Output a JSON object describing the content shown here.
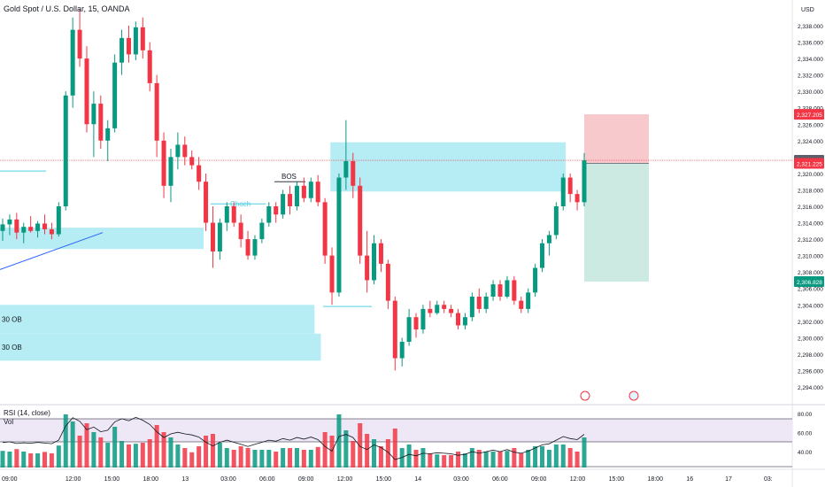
{
  "header": {
    "title": "Gold Spot / U.S. Dollar, 15, OANDA",
    "currency": "USD"
  },
  "price_axis": {
    "ticks": [
      "2,338.000",
      "2,336.000",
      "2,334.000",
      "2,332.000",
      "2,330.000",
      "2,328.000",
      "2,326.000",
      "2,324.000",
      "2,322.000",
      "2,320.000",
      "2,318.000",
      "2,316.000",
      "2,314.000",
      "2,312.000",
      "2,310.000",
      "2,308.000",
      "2,306.000",
      "2,304.000",
      "2,302.000",
      "2,300.000",
      "2,298.000",
      "2,296.000",
      "2,294.000"
    ],
    "tick_values": [
      2338,
      2336,
      2334,
      2332,
      2330,
      2328,
      2326,
      2324,
      2322,
      2320,
      2318,
      2316,
      2314,
      2312,
      2310,
      2308,
      2306,
      2304,
      2302,
      2300,
      2298,
      2296,
      2294
    ],
    "badges": [
      {
        "label": "2,327.205",
        "value": 2327.205,
        "color": "#f23645"
      },
      {
        "label": "2,321.604",
        "value": 2321.604,
        "color": "#5d606b"
      },
      {
        "label": "2,321.225",
        "value": 2321.225,
        "color": "#f23645"
      },
      {
        "label": "2,306.828",
        "value": 2306.828,
        "color": "#089981"
      }
    ]
  },
  "time_axis": [
    "09:00",
    "12:00",
    "15:00",
    "18:00",
    "13",
    "03:00",
    "06:00",
    "09:00",
    "12:00",
    "15:00",
    "14",
    "03:00",
    "06:00",
    "09:00",
    "12:00",
    "15:00",
    "18:00",
    "16",
    "17",
    "03:"
  ],
  "annotations": {
    "choch": "Choch",
    "bos": "BOS",
    "ob_1": "30 OB",
    "ob_2": "30 OB"
  },
  "rsi": {
    "label": "RSI (14, close)",
    "vol_label": "Vol",
    "ticks": [
      "80.00",
      "60.00",
      "40.00"
    ],
    "tick_values": [
      80,
      60,
      40
    ]
  },
  "colors": {
    "up": "#089981",
    "down": "#f23645",
    "zone": "#b2ebf2",
    "zone_line": "#4dd0e1",
    "stop": "#f7c9cd",
    "target": "#cce9e2",
    "rsi_band": "#ede7f6"
  },
  "chart_data": {
    "type": "candlestick",
    "title": "Gold Spot / U.S. Dollar, 15, OANDA",
    "ylabel": "USD",
    "ylim": [
      2293,
      2340
    ],
    "x": [
      "09:00",
      "12:00",
      "15:00",
      "18:00",
      "13",
      "03:00",
      "06:00",
      "09:00",
      "12:00",
      "15:00",
      "14",
      "03:00",
      "06:00",
      "09:00",
      "12:00",
      "15:00",
      "18:00",
      "16",
      "17"
    ],
    "series": [
      {
        "values": [
          {
            "o": 2313.0,
            "h": 2314.5,
            "l": 2311.8,
            "c": 2313.8
          },
          {
            "o": 2313.8,
            "h": 2315.0,
            "l": 2312.5,
            "c": 2314.4
          },
          {
            "o": 2314.4,
            "h": 2315.2,
            "l": 2312.0,
            "c": 2312.8
          },
          {
            "o": 2312.8,
            "h": 2314.0,
            "l": 2311.5,
            "c": 2313.5
          },
          {
            "o": 2313.5,
            "h": 2314.8,
            "l": 2312.8,
            "c": 2313.0
          },
          {
            "o": 2313.0,
            "h": 2314.2,
            "l": 2312.2,
            "c": 2313.9
          },
          {
            "o": 2313.9,
            "h": 2315.0,
            "l": 2312.6,
            "c": 2313.2
          },
          {
            "o": 2313.2,
            "h": 2314.0,
            "l": 2312.0,
            "c": 2312.6
          },
          {
            "o": 2312.6,
            "h": 2316.5,
            "l": 2312.3,
            "c": 2316.0
          },
          {
            "o": 2316.0,
            "h": 2330.0,
            "l": 2315.5,
            "c": 2329.5
          },
          {
            "o": 2329.5,
            "h": 2339.0,
            "l": 2328.0,
            "c": 2337.5
          },
          {
            "o": 2337.5,
            "h": 2340.0,
            "l": 2333.0,
            "c": 2334.0
          },
          {
            "o": 2334.0,
            "h": 2335.5,
            "l": 2325.0,
            "c": 2326.0
          },
          {
            "o": 2326.0,
            "h": 2330.0,
            "l": 2322.0,
            "c": 2328.5
          },
          {
            "o": 2328.5,
            "h": 2329.5,
            "l": 2323.0,
            "c": 2324.0
          },
          {
            "o": 2324.0,
            "h": 2326.5,
            "l": 2321.5,
            "c": 2325.5
          },
          {
            "o": 2325.5,
            "h": 2334.5,
            "l": 2325.0,
            "c": 2333.5
          },
          {
            "o": 2333.5,
            "h": 2337.5,
            "l": 2332.0,
            "c": 2336.5
          },
          {
            "o": 2336.5,
            "h": 2338.0,
            "l": 2333.5,
            "c": 2334.5
          },
          {
            "o": 2334.5,
            "h": 2338.5,
            "l": 2333.8,
            "c": 2337.8
          },
          {
            "o": 2337.8,
            "h": 2339.0,
            "l": 2334.0,
            "c": 2335.0
          },
          {
            "o": 2335.0,
            "h": 2336.0,
            "l": 2330.0,
            "c": 2331.0
          },
          {
            "o": 2331.0,
            "h": 2332.0,
            "l": 2322.0,
            "c": 2324.0
          },
          {
            "o": 2324.0,
            "h": 2325.0,
            "l": 2317.0,
            "c": 2318.5
          },
          {
            "o": 2318.5,
            "h": 2323.0,
            "l": 2316.5,
            "c": 2322.0
          },
          {
            "o": 2322.0,
            "h": 2325.0,
            "l": 2320.5,
            "c": 2323.5
          },
          {
            "o": 2323.5,
            "h": 2324.5,
            "l": 2321.0,
            "c": 2322.0
          },
          {
            "o": 2322.0,
            "h": 2322.8,
            "l": 2320.5,
            "c": 2321.0
          },
          {
            "o": 2321.0,
            "h": 2322.0,
            "l": 2318.0,
            "c": 2319.0
          },
          {
            "o": 2319.0,
            "h": 2320.0,
            "l": 2313.0,
            "c": 2314.0
          },
          {
            "o": 2314.0,
            "h": 2316.0,
            "l": 2308.5,
            "c": 2310.5
          },
          {
            "o": 2310.5,
            "h": 2314.5,
            "l": 2309.5,
            "c": 2314.0
          },
          {
            "o": 2314.0,
            "h": 2316.5,
            "l": 2313.0,
            "c": 2316.0
          },
          {
            "o": 2316.0,
            "h": 2316.5,
            "l": 2313.5,
            "c": 2314.0
          },
          {
            "o": 2314.0,
            "h": 2315.0,
            "l": 2311.0,
            "c": 2312.0
          },
          {
            "o": 2312.0,
            "h": 2313.0,
            "l": 2309.5,
            "c": 2310.0
          },
          {
            "o": 2310.0,
            "h": 2312.5,
            "l": 2309.5,
            "c": 2312.0
          },
          {
            "o": 2312.0,
            "h": 2314.5,
            "l": 2311.5,
            "c": 2314.0
          },
          {
            "o": 2314.0,
            "h": 2316.5,
            "l": 2313.5,
            "c": 2316.0
          },
          {
            "o": 2316.0,
            "h": 2316.5,
            "l": 2314.0,
            "c": 2315.0
          },
          {
            "o": 2315.0,
            "h": 2318.0,
            "l": 2314.5,
            "c": 2317.5
          },
          {
            "o": 2317.5,
            "h": 2318.5,
            "l": 2315.0,
            "c": 2316.0
          },
          {
            "o": 2316.0,
            "h": 2319.0,
            "l": 2315.5,
            "c": 2318.5
          },
          {
            "o": 2318.5,
            "h": 2319.5,
            "l": 2316.5,
            "c": 2317.0
          },
          {
            "o": 2317.0,
            "h": 2319.5,
            "l": 2316.5,
            "c": 2319.0
          },
          {
            "o": 2319.0,
            "h": 2319.8,
            "l": 2316.0,
            "c": 2316.5
          },
          {
            "o": 2316.5,
            "h": 2317.0,
            "l": 2309.0,
            "c": 2310.0
          },
          {
            "o": 2310.0,
            "h": 2311.0,
            "l": 2304.0,
            "c": 2305.5
          },
          {
            "o": 2305.5,
            "h": 2320.0,
            "l": 2305.0,
            "c": 2319.5
          },
          {
            "o": 2319.5,
            "h": 2326.5,
            "l": 2318.0,
            "c": 2321.5
          },
          {
            "o": 2321.5,
            "h": 2322.5,
            "l": 2317.0,
            "c": 2318.5
          },
          {
            "o": 2318.5,
            "h": 2319.5,
            "l": 2309.0,
            "c": 2310.0
          },
          {
            "o": 2310.0,
            "h": 2313.0,
            "l": 2305.5,
            "c": 2307.0
          },
          {
            "o": 2307.0,
            "h": 2312.5,
            "l": 2306.5,
            "c": 2311.5
          },
          {
            "o": 2311.5,
            "h": 2312.0,
            "l": 2308.0,
            "c": 2309.0
          },
          {
            "o": 2309.0,
            "h": 2309.5,
            "l": 2303.5,
            "c": 2304.5
          },
          {
            "o": 2304.5,
            "h": 2305.0,
            "l": 2296.0,
            "c": 2297.5
          },
          {
            "o": 2297.5,
            "h": 2300.0,
            "l": 2296.5,
            "c": 2299.5
          },
          {
            "o": 2299.5,
            "h": 2303.5,
            "l": 2299.0,
            "c": 2302.5
          },
          {
            "o": 2302.5,
            "h": 2303.0,
            "l": 2300.0,
            "c": 2301.0
          },
          {
            "o": 2301.0,
            "h": 2304.0,
            "l": 2300.5,
            "c": 2303.5
          },
          {
            "o": 2303.5,
            "h": 2304.5,
            "l": 2302.5,
            "c": 2303.0
          },
          {
            "o": 2303.0,
            "h": 2304.5,
            "l": 2302.8,
            "c": 2304.0
          },
          {
            "o": 2304.0,
            "h": 2304.5,
            "l": 2303.0,
            "c": 2303.5
          },
          {
            "o": 2303.5,
            "h": 2304.0,
            "l": 2302.5,
            "c": 2303.0
          },
          {
            "o": 2303.0,
            "h": 2303.5,
            "l": 2301.0,
            "c": 2301.5
          },
          {
            "o": 2301.5,
            "h": 2303.0,
            "l": 2301.0,
            "c": 2302.5
          },
          {
            "o": 2302.5,
            "h": 2305.5,
            "l": 2302.0,
            "c": 2305.0
          },
          {
            "o": 2305.0,
            "h": 2306.0,
            "l": 2303.0,
            "c": 2303.5
          },
          {
            "o": 2303.5,
            "h": 2305.5,
            "l": 2303.0,
            "c": 2305.0
          },
          {
            "o": 2305.0,
            "h": 2307.0,
            "l": 2304.5,
            "c": 2306.5
          },
          {
            "o": 2306.5,
            "h": 2307.0,
            "l": 2304.5,
            "c": 2305.0
          },
          {
            "o": 2305.0,
            "h": 2307.5,
            "l": 2304.8,
            "c": 2307.0
          },
          {
            "o": 2307.0,
            "h": 2307.5,
            "l": 2304.0,
            "c": 2304.5
          },
          {
            "o": 2304.5,
            "h": 2305.0,
            "l": 2303.0,
            "c": 2303.5
          },
          {
            "o": 2303.5,
            "h": 2306.0,
            "l": 2303.0,
            "c": 2305.5
          },
          {
            "o": 2305.5,
            "h": 2309.0,
            "l": 2305.0,
            "c": 2308.5
          },
          {
            "o": 2308.5,
            "h": 2312.0,
            "l": 2308.0,
            "c": 2311.5
          },
          {
            "o": 2311.5,
            "h": 2313.0,
            "l": 2310.0,
            "c": 2312.5
          },
          {
            "o": 2312.5,
            "h": 2316.5,
            "l": 2312.0,
            "c": 2316.0
          },
          {
            "o": 2316.0,
            "h": 2320.0,
            "l": 2315.5,
            "c": 2319.5
          },
          {
            "o": 2319.5,
            "h": 2320.0,
            "l": 2316.5,
            "c": 2317.5
          },
          {
            "o": 2317.5,
            "h": 2318.0,
            "l": 2315.5,
            "c": 2316.5
          },
          {
            "o": 2316.5,
            "h": 2322.5,
            "l": 2316.0,
            "c": 2321.6
          }
        ]
      }
    ],
    "zones": [
      {
        "label": "",
        "y1": 2313.4,
        "y2": 2310.8,
        "x0": 0.0,
        "x1": 0.257
      },
      {
        "label": "",
        "y1": 2323.8,
        "y2": 2317.8,
        "x0": 0.417,
        "x1": 0.714
      },
      {
        "label": "30 OB",
        "y1": 2304.0,
        "y2": 2300.5,
        "x0": 0.0,
        "x1": 0.397
      },
      {
        "label": "30 OB",
        "y1": 2300.5,
        "y2": 2297.2,
        "x0": 0.0,
        "x1": 0.405
      }
    ],
    "position": {
      "type": "short",
      "entry": 2321.225,
      "stop": 2327.205,
      "target": 2306.828
    },
    "last_price": 2321.604
  }
}
